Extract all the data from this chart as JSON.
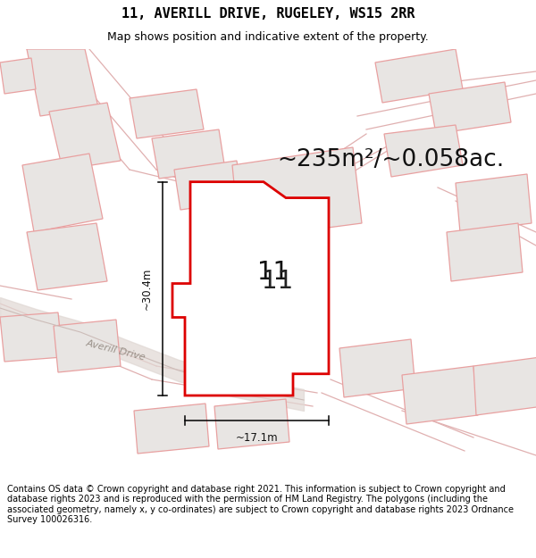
{
  "title": "11, AVERILL DRIVE, RUGELEY, WS15 2RR",
  "subtitle": "Map shows position and indicative extent of the property.",
  "area_text": "~235m²/~0.058ac.",
  "property_number": "11",
  "dim_width": "~17.1m",
  "dim_height": "~30.4m",
  "street_label": "Averill Drive",
  "footer": "Contains OS data © Crown copyright and database right 2021. This information is subject to Crown copyright and database rights 2023 and is reproduced with the permission of HM Land Registry. The polygons (including the associated geometry, namely x, y co-ordinates) are subject to Crown copyright and database rights 2023 Ordnance Survey 100026316.",
  "map_bg": "#f8f6f5",
  "property_fill": "#ffffff",
  "property_edge": "#dd0000",
  "bldg_fill": "#e8e5e3",
  "bldg_edge": "#e8a0a0",
  "road_fill": "#e0d8d4",
  "road_edge": "#ccbcb8",
  "title_fontsize": 11,
  "subtitle_fontsize": 9,
  "footer_fontsize": 7.0,
  "area_fontsize": 19
}
